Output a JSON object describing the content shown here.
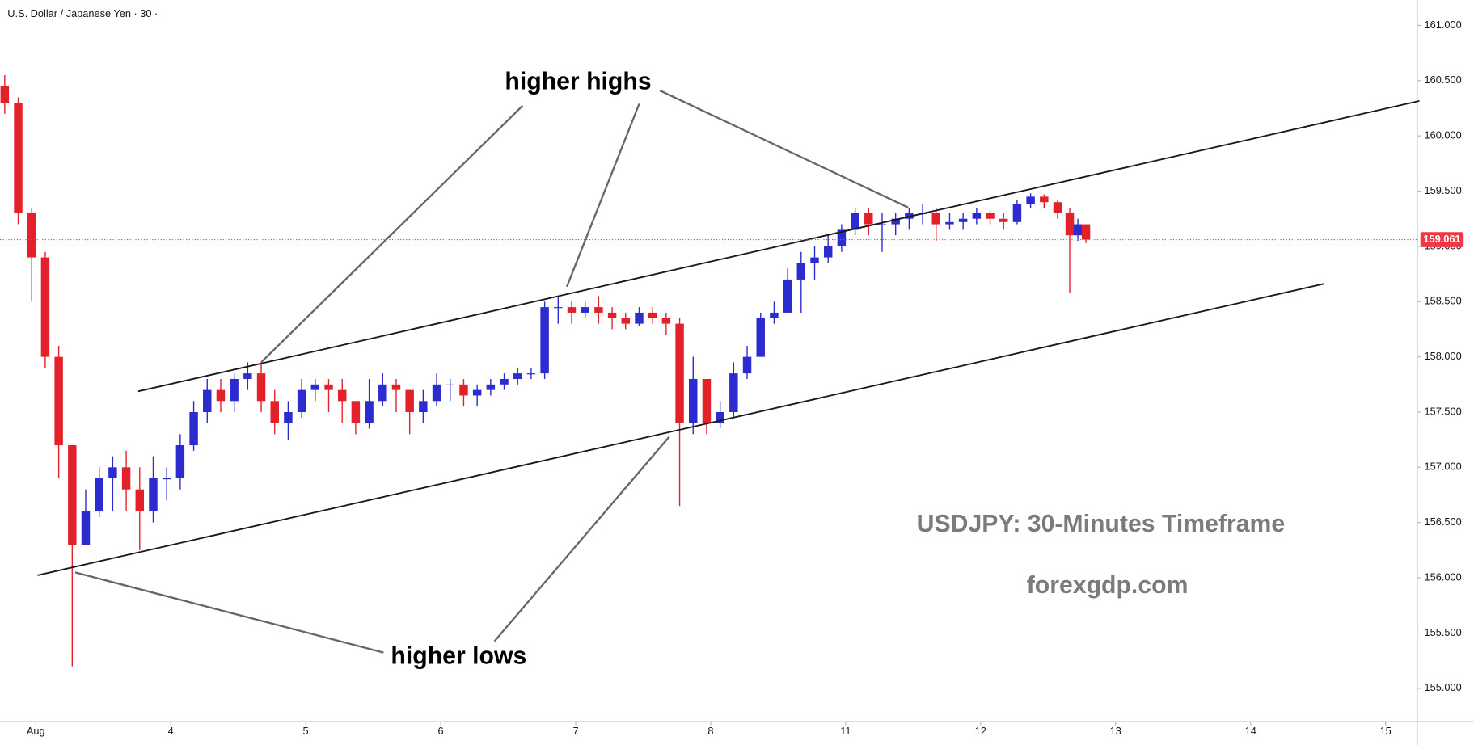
{
  "chart_data": {
    "type": "candlestick",
    "title": "U.S. Dollar / Japanese Yen · 30 ·",
    "annotations": [
      "higher highs",
      "higher lows",
      "USDJPY: 30-Minutes Timeframe",
      "forexgdp.com"
    ],
    "last_price": 159.061,
    "last_price_color": "#f23645",
    "up_color": "#2b2bd0",
    "down_color": "#e3212b",
    "xlim": [
      -0.265,
      10.237
    ],
    "ylim": [
      154.7,
      161.23
    ],
    "xticks": [
      {
        "value": 0,
        "label": "Aug"
      },
      1,
      2,
      3,
      4,
      5,
      6,
      7,
      8,
      9,
      10
    ],
    "xtick_labels_override": [
      "Aug",
      "4",
      "5",
      "6",
      "7",
      "8",
      "11",
      "12",
      "13",
      "14",
      "15"
    ],
    "yticks": [
      {
        "value": 155,
        "label": "155.000"
      },
      {
        "value": 155.5,
        "label": "155.500"
      },
      {
        "value": 156,
        "label": "156.000"
      },
      {
        "value": 156.5,
        "label": "156.500"
      },
      {
        "value": 157,
        "label": "157.000"
      },
      {
        "value": 157.5,
        "label": "157.500"
      },
      {
        "value": 158,
        "label": "158.000"
      },
      {
        "value": 158.5,
        "label": "158.500"
      },
      {
        "value": 159,
        "label": "159.000"
      },
      {
        "value": 159.5,
        "label": "159.500"
      },
      {
        "value": 160,
        "label": "160.000"
      },
      {
        "value": 160.5,
        "label": "160.500"
      },
      {
        "value": 161,
        "label": "161.000"
      }
    ],
    "x": [
      -0.23,
      -0.13,
      -0.03,
      0.07,
      0.17,
      0.27,
      0.37,
      0.47,
      0.57,
      0.67,
      0.77,
      0.87,
      0.97,
      1.07,
      1.17,
      1.27,
      1.37,
      1.47,
      1.57,
      1.67,
      1.77,
      1.87,
      1.97,
      2.07,
      2.17,
      2.27,
      2.37,
      2.47,
      2.57,
      2.67,
      2.77,
      2.87,
      2.97,
      3.07,
      3.17,
      3.27,
      3.37,
      3.47,
      3.57,
      3.67,
      3.77,
      3.87,
      3.97,
      4.07,
      4.17,
      4.27,
      4.37,
      4.47,
      4.57,
      4.67,
      4.77,
      4.87,
      4.97,
      5.07,
      5.17,
      5.27,
      5.37,
      5.47,
      5.57,
      5.67,
      5.77,
      5.87,
      5.97,
      6.07,
      6.17,
      6.27,
      6.37,
      6.47,
      6.57,
      6.67,
      6.77,
      6.87,
      6.97,
      7.07,
      7.17,
      7.27,
      7.37,
      7.47,
      7.57,
      7.66,
      7.72,
      7.78
    ],
    "open": [
      160.45,
      160.3,
      159.3,
      158.9,
      158.0,
      157.2,
      156.3,
      156.6,
      156.9,
      157.0,
      156.8,
      156.6,
      156.9,
      156.9,
      157.2,
      157.5,
      157.7,
      157.6,
      157.8,
      157.85,
      157.6,
      157.4,
      157.5,
      157.7,
      157.75,
      157.7,
      157.6,
      157.4,
      157.6,
      157.75,
      157.7,
      157.5,
      157.6,
      157.75,
      157.75,
      157.65,
      157.7,
      157.75,
      157.8,
      157.85,
      157.85,
      158.45,
      158.45,
      158.4,
      158.45,
      158.4,
      158.35,
      158.3,
      158.4,
      158.35,
      158.3,
      157.4,
      157.8,
      157.4,
      157.5,
      157.85,
      158.0,
      158.35,
      158.4,
      158.7,
      158.85,
      158.9,
      159.0,
      159.15,
      159.3,
      159.2,
      159.2,
      159.25,
      159.3,
      159.3,
      159.2,
      159.22,
      159.25,
      159.3,
      159.25,
      159.22,
      159.38,
      159.45,
      159.4,
      159.3,
      159.1,
      159.2
    ],
    "high": [
      160.55,
      160.35,
      159.35,
      158.95,
      158.1,
      157.2,
      156.8,
      157.0,
      157.1,
      157.15,
      157.0,
      157.1,
      157.0,
      157.3,
      157.6,
      157.8,
      157.8,
      157.85,
      157.95,
      157.95,
      157.7,
      157.6,
      157.8,
      157.8,
      157.8,
      157.8,
      157.6,
      157.8,
      157.85,
      157.8,
      157.7,
      157.7,
      157.85,
      157.8,
      157.8,
      157.75,
      157.8,
      157.85,
      157.9,
      157.9,
      158.5,
      158.55,
      158.5,
      158.5,
      158.55,
      158.45,
      158.4,
      158.45,
      158.45,
      158.4,
      158.35,
      158.0,
      157.8,
      157.6,
      157.95,
      158.1,
      158.4,
      158.5,
      158.8,
      158.95,
      159.0,
      159.1,
      159.2,
      159.35,
      159.35,
      159.3,
      159.3,
      159.35,
      159.38,
      159.35,
      159.3,
      159.3,
      159.35,
      159.32,
      159.3,
      159.42,
      159.48,
      159.47,
      159.42,
      159.35,
      159.25,
      159.2
    ],
    "low": [
      160.2,
      159.2,
      158.5,
      157.9,
      156.9,
      155.2,
      156.3,
      156.55,
      156.6,
      156.6,
      156.25,
      156.5,
      156.7,
      156.8,
      157.15,
      157.4,
      157.5,
      157.5,
      157.7,
      157.5,
      157.3,
      157.25,
      157.45,
      157.6,
      157.5,
      157.4,
      157.3,
      157.35,
      157.55,
      157.5,
      157.3,
      157.4,
      157.55,
      157.6,
      157.55,
      157.55,
      157.65,
      157.7,
      157.75,
      157.8,
      157.8,
      158.3,
      158.3,
      158.35,
      158.3,
      158.25,
      158.25,
      158.28,
      158.3,
      158.2,
      156.65,
      157.3,
      157.3,
      157.35,
      157.45,
      157.8,
      158.0,
      158.3,
      158.4,
      158.4,
      158.7,
      158.85,
      158.95,
      159.1,
      159.1,
      158.95,
      159.1,
      159.15,
      159.2,
      159.05,
      159.15,
      159.15,
      159.2,
      159.2,
      159.15,
      159.2,
      159.35,
      159.35,
      159.25,
      158.58,
      159.05,
      159.03
    ],
    "close": [
      160.3,
      159.3,
      158.9,
      158.0,
      157.2,
      156.3,
      156.6,
      156.9,
      157.0,
      156.8,
      156.6,
      156.9,
      156.9,
      157.2,
      157.5,
      157.7,
      157.6,
      157.8,
      157.85,
      157.6,
      157.4,
      157.5,
      157.7,
      157.75,
      157.7,
      157.6,
      157.4,
      157.6,
      157.75,
      157.7,
      157.5,
      157.6,
      157.75,
      157.75,
      157.65,
      157.7,
      157.75,
      157.8,
      157.85,
      157.85,
      158.45,
      158.45,
      158.4,
      158.45,
      158.4,
      158.35,
      158.3,
      158.4,
      158.35,
      158.3,
      157.4,
      157.8,
      157.4,
      157.5,
      157.85,
      158.0,
      158.35,
      158.4,
      158.7,
      158.85,
      158.9,
      159.0,
      159.15,
      159.3,
      159.2,
      159.2,
      159.25,
      159.3,
      159.3,
      159.2,
      159.22,
      159.25,
      159.3,
      159.25,
      159.22,
      159.38,
      159.45,
      159.4,
      159.3,
      159.1,
      159.2,
      159.061
    ]
  }
}
